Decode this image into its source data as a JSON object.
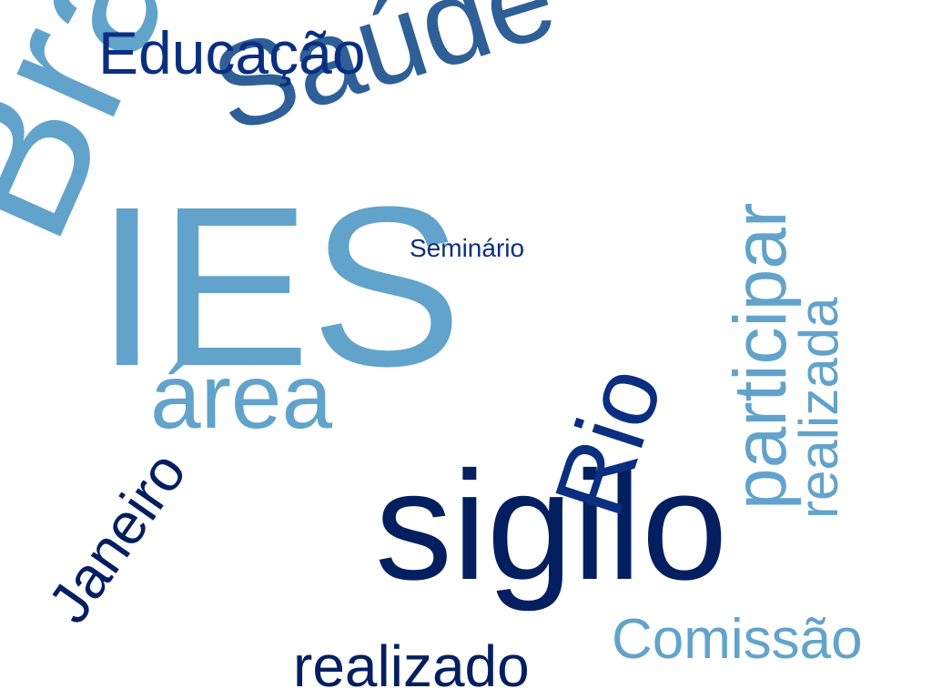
{
  "word_cloud": {
    "words": {
      "brasilia": "Brasília",
      "ies": "IES",
      "sigilo": "sigilo",
      "saude": "Saúde",
      "educacao": "Educação",
      "participar": "participar",
      "realizada": "realizada",
      "rio": "Rio",
      "area": "área",
      "janeiro": "Janeiro",
      "realizado": "realizado",
      "comissao": "Comissão",
      "seminario": "Seminário"
    },
    "colors": {
      "light_blue": "#62a3cb",
      "medium_blue": "#2f5f97",
      "dark_blue": "#0b2f80",
      "navy": "#031f60"
    }
  }
}
